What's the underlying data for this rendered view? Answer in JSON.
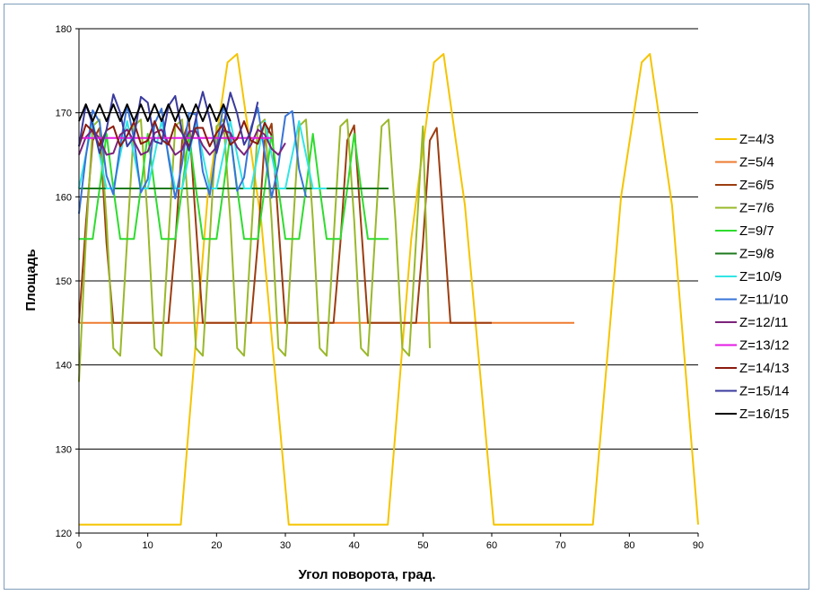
{
  "chart_data": {
    "type": "line",
    "title": "",
    "xlabel": "Угол поворота, град.",
    "ylabel": "Площадь",
    "xlim": [
      0,
      90
    ],
    "ylim": [
      120,
      180
    ],
    "x_ticks": [
      0,
      10,
      20,
      30,
      40,
      50,
      60,
      70,
      80,
      90
    ],
    "y_ticks": [
      120,
      130,
      140,
      150,
      160,
      170,
      180
    ],
    "grid": "horizontal",
    "legend_position": "right",
    "series": [
      {
        "name": "Z=4/3",
        "color": "#f5c400",
        "x": [
          0,
          14.8,
          18.7,
          21.6,
          23,
          26.5,
          30.5,
          44.9,
          48.3,
          51.6,
          53,
          56.1,
          60.3,
          74.7,
          78.8,
          81.8,
          83,
          86.2,
          90
        ],
        "y": [
          121,
          121,
          160,
          176,
          177,
          157,
          121,
          121,
          155,
          176,
          177,
          159,
          121,
          121,
          160,
          176,
          177,
          159,
          121
        ]
      },
      {
        "name": "Z=5/4",
        "color": "#ee7b30",
        "x": [
          0,
          0.5,
          72
        ],
        "y": [
          145,
          145,
          145
        ]
      },
      {
        "name": "Z=6/5",
        "color": "#9c3d10",
        "x": [
          0,
          1,
          2,
          3,
          4,
          5,
          6,
          7,
          8,
          9,
          10,
          11,
          12,
          13,
          14,
          15,
          16,
          17,
          18,
          19,
          20,
          21,
          22,
          23,
          24,
          25,
          26,
          27,
          28,
          29,
          30,
          31,
          32,
          33,
          34,
          35,
          36,
          37,
          38,
          39,
          40,
          41,
          42,
          43,
          44,
          45,
          46,
          47,
          48,
          49,
          50,
          51,
          52,
          53,
          54,
          55,
          56,
          57,
          58,
          59,
          60
        ],
        "y": [
          145.0,
          156.8,
          166.7,
          168.2,
          154.5,
          145.0,
          145.0,
          145.0,
          145.0,
          145.0,
          145.0,
          145.0,
          145.0,
          145.0,
          154.5,
          166.7,
          169.0,
          156.8,
          145.0,
          145.0,
          145.0,
          145.0,
          145.0,
          145.0,
          145.0,
          145.0,
          154.5,
          166.7,
          168.7,
          156.8,
          145.0,
          145.0,
          145.0,
          145.0,
          145.0,
          145.0,
          145.0,
          145.0,
          154.5,
          166.7,
          168.5,
          156.8,
          145.0,
          145.0,
          145.0,
          145.0,
          145.0,
          145.0,
          145.0,
          145.0,
          154.5,
          166.7,
          168.2,
          156.8,
          145.0,
          145.0,
          145.0,
          145.0,
          145.0,
          145.0,
          145.0
        ]
      },
      {
        "name": "Z=7/6",
        "color": "#99b82a",
        "x": [
          0,
          1,
          2,
          3,
          4,
          5,
          6,
          7,
          8,
          9,
          10,
          11,
          12,
          13,
          14,
          15,
          16,
          17,
          18,
          19,
          20,
          21,
          22,
          23,
          24,
          25,
          26,
          27,
          28,
          29,
          30,
          31,
          32,
          33,
          34,
          35,
          36,
          37,
          38,
          39,
          40,
          41,
          42,
          43,
          44,
          45,
          46,
          47,
          48,
          49,
          50,
          51
        ],
        "y": [
          138.0,
          154.9,
          168.4,
          169.2,
          157.2,
          142.0,
          141.1,
          154.9,
          168.4,
          169.2,
          157.2,
          142.0,
          141.1,
          154.9,
          168.4,
          169.2,
          157.2,
          142.0,
          141.1,
          154.9,
          168.4,
          169.2,
          157.2,
          142.0,
          141.1,
          154.9,
          168.4,
          169.2,
          157.2,
          142.0,
          141.1,
          154.9,
          168.4,
          169.2,
          157.2,
          142.0,
          141.1,
          154.9,
          168.4,
          169.2,
          157.2,
          142.0,
          141.1,
          154.9,
          168.4,
          169.2,
          157.2,
          142.0,
          141.1,
          154.9,
          168.4,
          142.0
        ]
      },
      {
        "name": "Z=9/7",
        "color": "#2edc2e",
        "x": [
          0,
          1,
          2,
          3,
          4,
          5,
          6,
          7,
          8,
          9,
          10,
          11,
          12,
          13,
          14,
          15,
          16,
          17,
          18,
          19,
          20,
          21,
          22,
          23,
          24,
          25,
          26,
          27,
          28,
          29,
          30,
          31,
          32,
          33,
          34,
          35,
          36,
          37,
          38,
          39,
          40,
          41,
          42,
          43,
          44,
          45
        ],
        "y": [
          155.0,
          155.0,
          155.0,
          161.0,
          167.5,
          161.0,
          155.0,
          155.0,
          155.0,
          161.0,
          167.5,
          161.0,
          155.0,
          155.0,
          155.0,
          161.0,
          167.5,
          161.0,
          155.0,
          155.0,
          155.0,
          161.0,
          167.5,
          161.0,
          155.0,
          155.0,
          155.0,
          161.0,
          167.5,
          161.0,
          155.0,
          155.0,
          155.0,
          161.0,
          167.5,
          161.0,
          155.0,
          155.0,
          155.0,
          161.0,
          167.5,
          161.0,
          155.0,
          155.0,
          155.0,
          155.0
        ]
      },
      {
        "name": "Z=9/8",
        "color": "#1e7a1e",
        "x": [
          0,
          45
        ],
        "y": [
          161,
          161
        ]
      },
      {
        "name": "Z=10/9",
        "color": "#33e5e5",
        "x": [
          0,
          1,
          2,
          3,
          4,
          5,
          6,
          7,
          8,
          9,
          10,
          11,
          12,
          13,
          14,
          15,
          16,
          17,
          18,
          19,
          20,
          21,
          22,
          23,
          24,
          25,
          26,
          27,
          28,
          29,
          30,
          31,
          32,
          33,
          34,
          35,
          36
        ],
        "y": [
          161.0,
          165.0,
          169.0,
          165.0,
          161.0,
          161.0,
          165.0,
          169.0,
          165.0,
          161.0,
          161.0,
          165.0,
          169.0,
          165.0,
          161.0,
          161.0,
          165.0,
          169.0,
          165.0,
          161.0,
          161.0,
          165.0,
          169.0,
          165.0,
          161.0,
          161.0,
          165.0,
          169.0,
          165.0,
          161.0,
          161.0,
          165.0,
          169.0,
          165.0,
          161.0,
          161.0,
          161.0
        ]
      },
      {
        "name": "Z=11/10",
        "color": "#3874d8",
        "x": [
          0,
          1,
          2,
          3,
          4,
          5,
          6,
          7,
          8,
          9,
          10,
          11,
          12,
          13,
          14,
          15,
          16,
          17,
          18,
          19,
          20,
          21,
          22,
          23,
          24,
          25,
          26,
          27,
          28,
          29,
          30,
          31,
          32,
          33
        ],
        "y": [
          158.0,
          164.8,
          170.3,
          168.9,
          162.5,
          160.3,
          166.1,
          170.9,
          166.9,
          160.5,
          162.1,
          168.7,
          170.5,
          164.7,
          159.8,
          164.0,
          170.0,
          169.8,
          163.0,
          160.2,
          165.7,
          170.9,
          167.4,
          160.7,
          162.3,
          168.2,
          170.6,
          165.2,
          159.9,
          163.8,
          169.6,
          170.2,
          163.3,
          160.0
        ]
      },
      {
        "name": "Z=12/11",
        "color": "#7b237b",
        "x": [
          0,
          1,
          2,
          3,
          4,
          5,
          6,
          7,
          8,
          9,
          10,
          11,
          12,
          13,
          14,
          15,
          16,
          17,
          18,
          19,
          20,
          21,
          22,
          23,
          24,
          25,
          26,
          27,
          28,
          29,
          30
        ],
        "y": [
          165.0,
          167.1,
          168.0,
          166.9,
          165.0,
          165.2,
          167.4,
          168.0,
          166.6,
          165.0,
          165.4,
          167.6,
          168.0,
          166.4,
          165.0,
          165.6,
          167.8,
          167.8,
          166.1,
          165.0,
          165.9,
          167.9,
          167.6,
          165.9,
          165.0,
          166.2,
          168.0,
          167.4,
          165.7,
          165.0,
          166.4
        ]
      },
      {
        "name": "Z=13/12",
        "color": "#e51ae5",
        "x": [
          0,
          28
        ],
        "y": [
          167,
          167
        ]
      },
      {
        "name": "Z=14/13",
        "color": "#8b1b0e",
        "x": [
          0,
          1,
          2,
          3,
          4,
          5,
          6,
          7,
          8,
          9,
          10,
          11,
          12,
          13,
          14,
          15,
          16,
          17,
          18,
          19,
          20,
          21,
          22,
          23,
          24,
          25,
          26,
          27,
          28
        ],
        "y": [
          166.0,
          168.6,
          167.8,
          166.1,
          167.9,
          168.4,
          166.0,
          167.3,
          168.9,
          166.3,
          166.7,
          169.0,
          166.8,
          166.2,
          168.7,
          167.6,
          166.0,
          168.2,
          168.2,
          166.0,
          167.6,
          168.7,
          166.2,
          166.9,
          169.0,
          166.7,
          166.3,
          168.8,
          167.3
        ]
      },
      {
        "name": "Z=15/14",
        "color": "#3a3a9e",
        "x": [
          0,
          1,
          2,
          3,
          4,
          5,
          6,
          7,
          8,
          9,
          10,
          11,
          12,
          13,
          14,
          15,
          16,
          17,
          18,
          19,
          20,
          21,
          22,
          23,
          24,
          25,
          26
        ],
        "y": [
          166.0,
          171.0,
          168.6,
          165.2,
          168.0,
          172.2,
          170.0,
          166.0,
          167.1,
          171.9,
          171.2,
          166.6,
          166.3,
          170.8,
          172.0,
          167.6,
          165.5,
          169.3,
          172.5,
          169.3,
          165.2,
          168.5,
          172.4,
          169.9,
          166.2,
          167.8,
          171.3
        ]
      },
      {
        "name": "Z=16/15",
        "color": "#000000",
        "x": [
          0,
          1,
          2,
          3,
          4,
          5,
          6,
          7,
          8,
          9,
          10,
          11,
          12,
          13,
          14,
          15,
          16,
          17,
          18,
          19,
          20,
          21,
          22
        ],
        "y": [
          169.0,
          171.0,
          169.0,
          171.0,
          169.0,
          171.0,
          169.0,
          171.0,
          169.0,
          171.0,
          169.0,
          171.0,
          169.0,
          171.0,
          169.0,
          171.0,
          169.0,
          171.0,
          169.0,
          171.0,
          169.0,
          171.0,
          169.0
        ]
      }
    ]
  }
}
